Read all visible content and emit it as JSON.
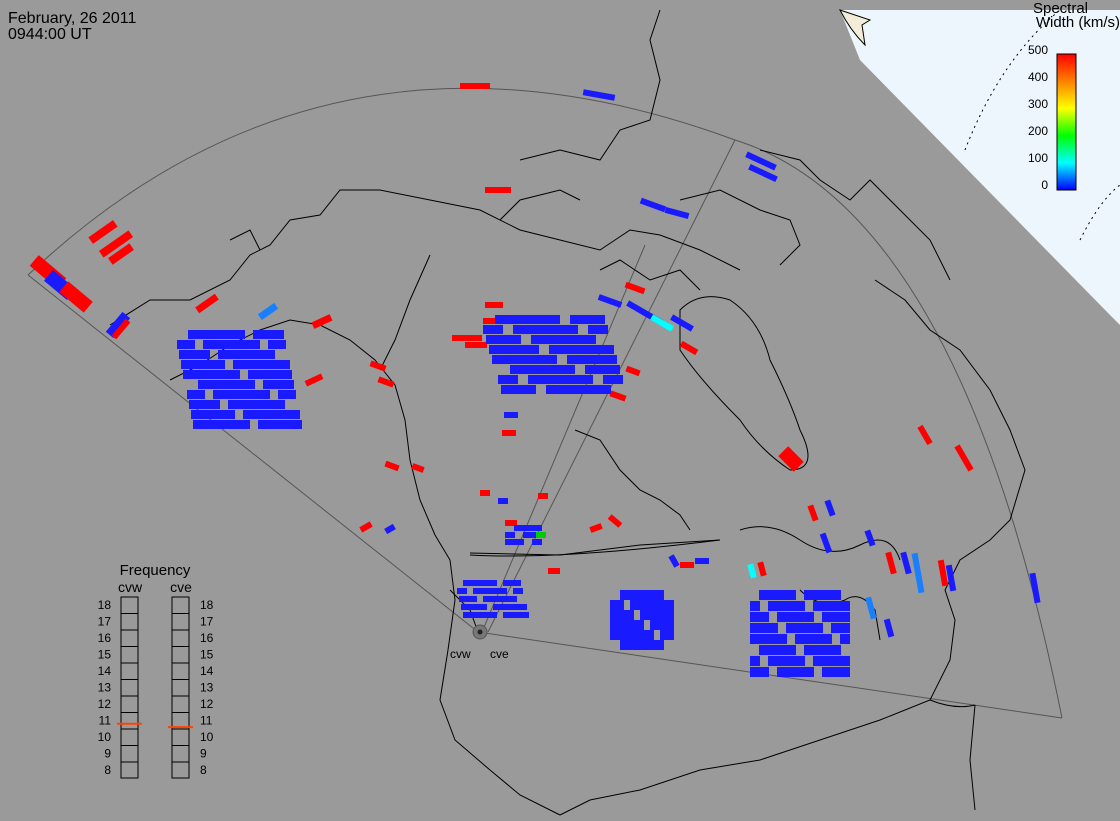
{
  "header": {
    "date": "February, 26 2011",
    "time": "0944:00 UT"
  },
  "colorbar": {
    "title_line1": "Spectral",
    "title_line2": "Width (km/s)",
    "ticks": [
      "500",
      "400",
      "300",
      "200",
      "100",
      "0"
    ],
    "colors": [
      "#0000ff",
      "#00ffff",
      "#00ff00",
      "#ffff00",
      "#ff8000",
      "#ff0000"
    ]
  },
  "radars": {
    "west": "cvw",
    "east": "cve"
  },
  "frequency": {
    "title": "Frequency",
    "col_west": "cvw",
    "col_east": "cve",
    "scale": [
      "18",
      "17",
      "16",
      "15",
      "14",
      "13",
      "12",
      "11",
      "10",
      "9",
      "8"
    ],
    "cvw_value_mhz": 10.8,
    "cve_value_mhz": 10.6,
    "marker_color": "#ff4400"
  },
  "colors": {
    "background": "#9a9a9a",
    "polar_region": "#eef6fd",
    "land_lines": "#000000",
    "fov_lines": "#555555",
    "low_width": "#1a1aff",
    "high_width": "#ff0000"
  }
}
